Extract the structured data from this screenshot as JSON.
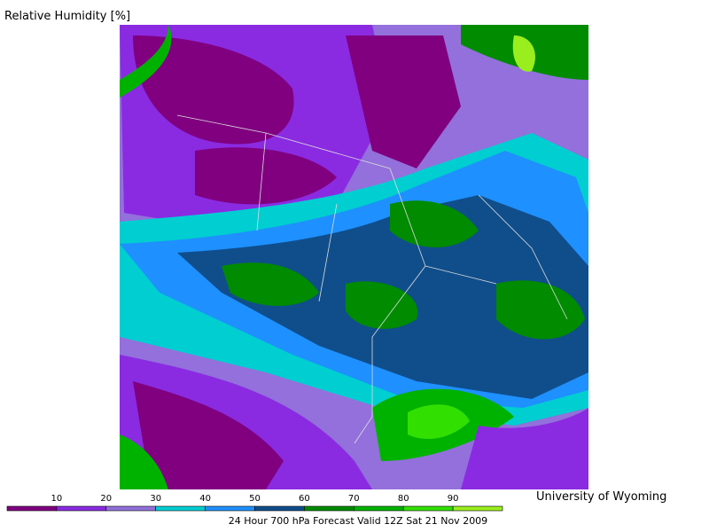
{
  "title": "Relative Humidity [%]",
  "credit": "University of Wyoming",
  "caption": "24 Hour 700 hPa Forecast Valid 12Z Sat 21 Nov 2009",
  "legend": {
    "ticks": [
      10,
      20,
      30,
      40,
      50,
      60,
      70,
      80,
      90
    ],
    "colors": [
      "#800080",
      "#8a2be2",
      "#9370db",
      "#00ced1",
      "#1e90ff",
      "#104e8b",
      "#008b00",
      "#00b200",
      "#32e000",
      "#9aee1e"
    ]
  }
}
